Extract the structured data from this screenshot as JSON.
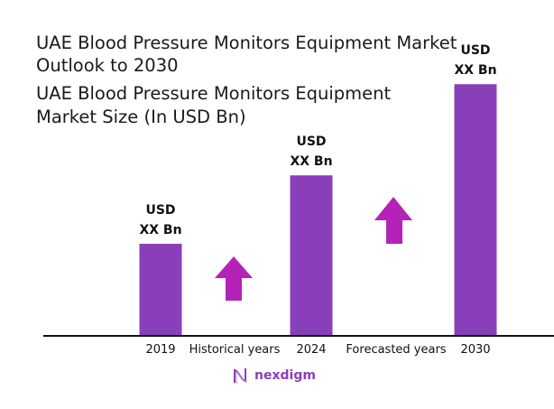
{
  "title_line1": "UAE Blood Pressure Monitors Equipment Market",
  "title_line2": "Outlook to 2030",
  "subtitle_line1": "UAE Blood Pressure Monitors Equipment",
  "subtitle_line2": "Market Size (In USD Bn)",
  "chart_data": {
    "type": "bar",
    "title": "UAE Blood Pressure Monitors Equipment Market Outlook to 2030",
    "ylabel": "Market Size (In USD Bn)",
    "categories": [
      "2019",
      "2024",
      "2030"
    ],
    "values": [
      1.0,
      1.75,
      2.75
    ],
    "data_labels": [
      [
        "USD",
        "XX Bn"
      ],
      [
        "USD",
        "XX Bn"
      ],
      [
        "USD",
        "XX Bn"
      ]
    ],
    "annotations": [
      "Historical years",
      "Forecasted years"
    ],
    "bar_color": "#8a3fba",
    "arrow_color": "#b422b8",
    "grid": false,
    "legend": "none"
  },
  "logo_text": "nexdigm"
}
